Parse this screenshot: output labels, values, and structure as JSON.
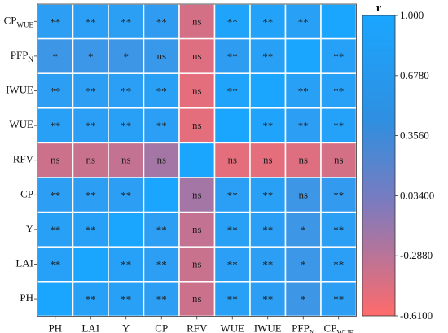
{
  "chart_data": {
    "type": "heatmap",
    "title": "",
    "colorbar": {
      "title": "r",
      "ticks": [
        "1.000",
        "0.6780",
        "0.3560",
        "0.03400",
        "-0.2880",
        "-0.6100"
      ],
      "min": -0.61,
      "max": 1.0,
      "colors": {
        "low": "#ff6b6b",
        "mid": "#7b7bbf",
        "high": "#1aa6ff"
      }
    },
    "rows": [
      "CP_WUE",
      "PFP_N",
      "IWUE",
      "WUE",
      "RFV",
      "CP",
      "Y",
      "LAI",
      "PH"
    ],
    "columns": [
      "PH",
      "LAI",
      "Y",
      "CP",
      "RFV",
      "WUE",
      "IWUE",
      "PFP_N",
      "CP_WUE"
    ],
    "row_labels": [
      {
        "main": "CP",
        "sub": "WUE"
      },
      {
        "main": "PFP",
        "sub": "N"
      },
      {
        "main": "IWUE",
        "sub": ""
      },
      {
        "main": "WUE",
        "sub": ""
      },
      {
        "main": "RFV",
        "sub": ""
      },
      {
        "main": "CP",
        "sub": ""
      },
      {
        "main": "Y",
        "sub": ""
      },
      {
        "main": "LAI",
        "sub": ""
      },
      {
        "main": "PH",
        "sub": ""
      }
    ],
    "col_labels": [
      {
        "main": "PH",
        "sub": ""
      },
      {
        "main": "LAI",
        "sub": ""
      },
      {
        "main": "Y",
        "sub": ""
      },
      {
        "main": "CP",
        "sub": ""
      },
      {
        "main": "RFV",
        "sub": ""
      },
      {
        "main": "WUE",
        "sub": ""
      },
      {
        "main": "IWUE",
        "sub": ""
      },
      {
        "main": "PFP",
        "sub": "N"
      },
      {
        "main": "CP",
        "sub": "WUE"
      }
    ],
    "values": [
      [
        0.85,
        0.87,
        0.86,
        0.82,
        -0.35,
        0.95,
        0.93,
        0.88,
        1.0
      ],
      [
        0.7,
        0.72,
        0.7,
        0.75,
        -0.4,
        0.83,
        0.88,
        1.0,
        0.9
      ],
      [
        0.85,
        0.85,
        0.87,
        0.88,
        -0.45,
        0.95,
        1.0,
        0.88,
        0.9
      ],
      [
        0.88,
        0.87,
        0.88,
        0.87,
        -0.45,
        1.0,
        0.95,
        0.85,
        0.92
      ],
      [
        -0.3,
        -0.28,
        -0.25,
        -0.05,
        1.0,
        -0.45,
        -0.45,
        -0.4,
        -0.35
      ],
      [
        0.85,
        0.85,
        0.85,
        1.0,
        -0.05,
        0.87,
        0.88,
        0.7,
        0.8
      ],
      [
        0.88,
        0.9,
        1.0,
        0.85,
        -0.25,
        0.88,
        0.87,
        0.7,
        0.86
      ],
      [
        0.9,
        1.0,
        0.9,
        0.85,
        -0.28,
        0.87,
        0.85,
        0.72,
        0.87
      ],
      [
        1.0,
        0.9,
        0.88,
        0.85,
        -0.3,
        0.88,
        0.85,
        0.7,
        0.85
      ]
    ],
    "labels": [
      [
        "**",
        "**",
        "**",
        "**",
        "ns",
        "**",
        "**",
        "**",
        ""
      ],
      [
        "*",
        "*",
        "*",
        "ns",
        "ns",
        "**",
        "**",
        "",
        "**"
      ],
      [
        "**",
        "**",
        "**",
        "**",
        "ns",
        "**",
        "",
        "**",
        "**"
      ],
      [
        "**",
        "**",
        "**",
        "**",
        "ns",
        "",
        "**",
        "**",
        "**"
      ],
      [
        "ns",
        "ns",
        "ns",
        "ns",
        "",
        "ns",
        "ns",
        "ns",
        "ns"
      ],
      [
        "**",
        "**",
        "**",
        "",
        "ns",
        "**",
        "**",
        "ns",
        "**"
      ],
      [
        "**",
        "**",
        "",
        "**",
        "ns",
        "**",
        "**",
        "*",
        "**"
      ],
      [
        "**",
        "",
        "**",
        "**",
        "ns",
        "**",
        "**",
        "*",
        "**"
      ],
      [
        "",
        "**",
        "**",
        "**",
        "ns",
        "**",
        "**",
        "*",
        "**"
      ]
    ]
  }
}
